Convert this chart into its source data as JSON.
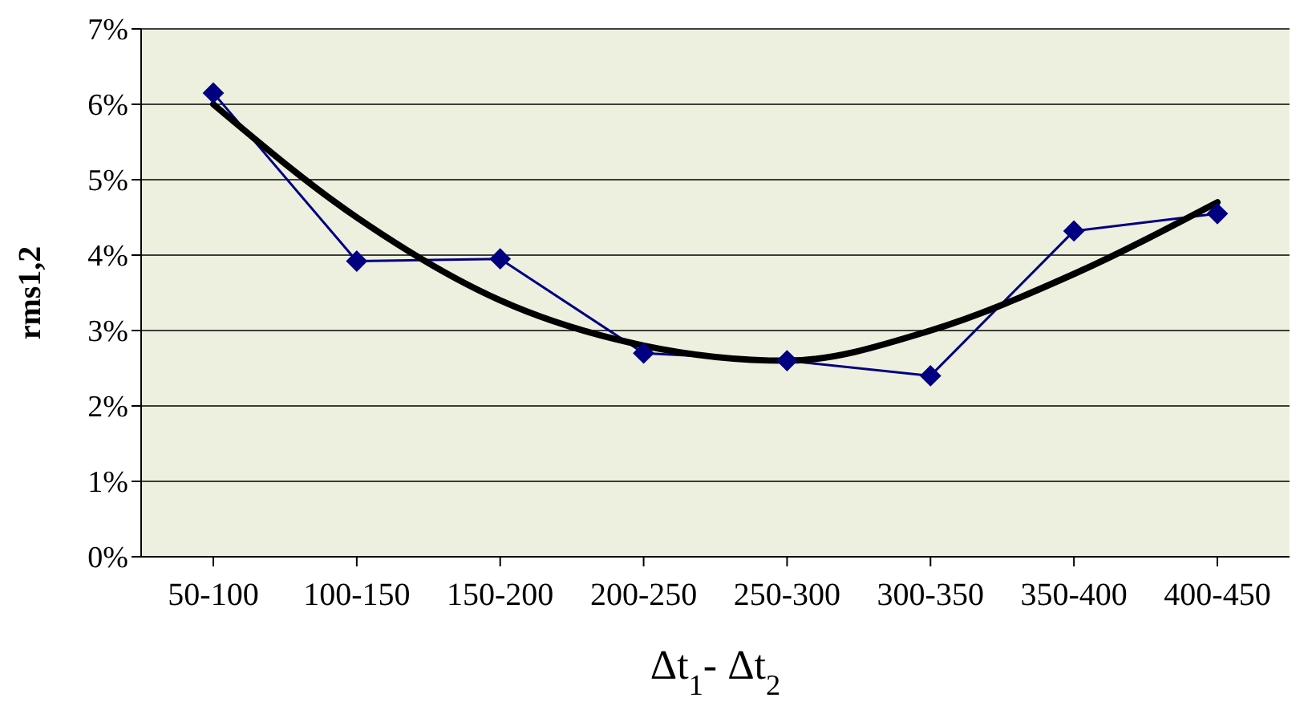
{
  "chart_data": {
    "type": "line",
    "xlabel": "Δt$_{1}$- Δt$_{2}$",
    "ylabel": "rms1,2",
    "categories": [
      "50-100",
      "100-150",
      "150-200",
      "200-250",
      "250-300",
      "300-350",
      "350-400",
      "400-450"
    ],
    "series": [
      {
        "color": "#000080",
        "marker": "diamond",
        "values": [
          6.15,
          3.92,
          3.95,
          2.7,
          2.6,
          2.4,
          4.32,
          4.55
        ]
      },
      {
        "type": "line",
        "color": "#000000",
        "marker": "none",
        "values": [
          6.0,
          4.5,
          3.4,
          2.8,
          2.6,
          3.0,
          3.75,
          4.7
        ]
      }
    ],
    "ylim": [
      0,
      7
    ],
    "yticks": [
      {
        "value": 0,
        "label": "0%"
      },
      {
        "value": 1,
        "label": "1%"
      },
      {
        "value": 2,
        "label": "2%"
      },
      {
        "value": 3,
        "label": "3%"
      },
      {
        "value": 4,
        "label": "4%"
      },
      {
        "value": 5,
        "label": "5%"
      },
      {
        "value": 6,
        "label": "6%"
      },
      {
        "value": 7,
        "label": "7%"
      }
    ],
    "grid": "y"
  }
}
